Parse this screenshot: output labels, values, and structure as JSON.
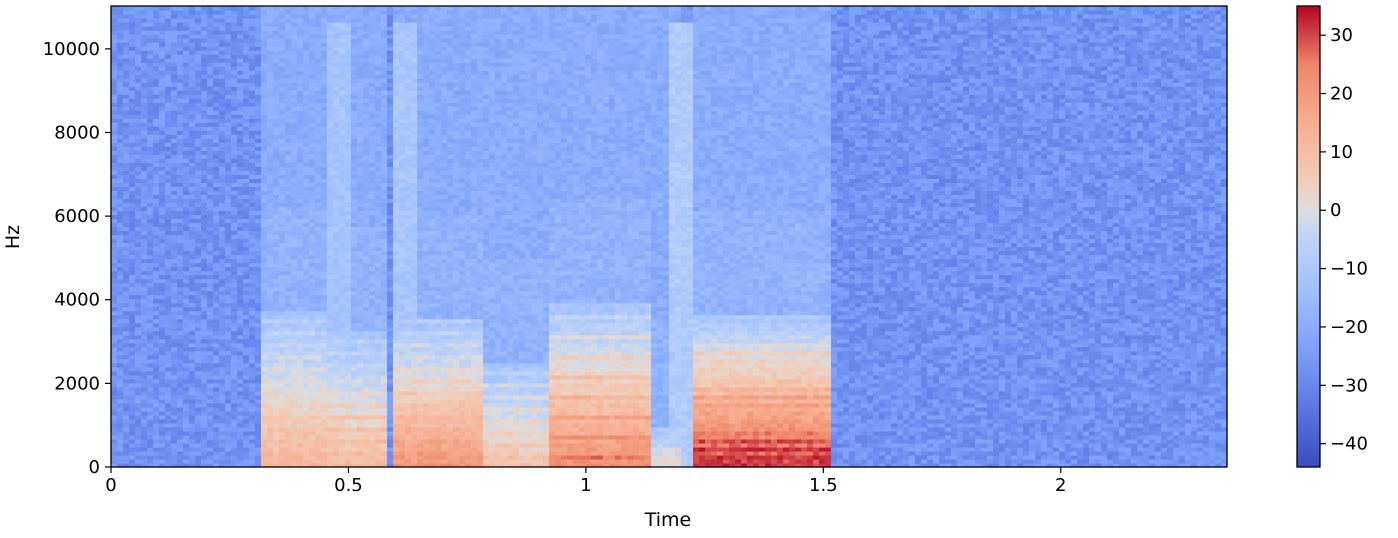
{
  "chart_data": {
    "type": "heatmap",
    "title": "",
    "xlabel": "Time",
    "ylabel": "Hz",
    "xlim": [
      0,
      2.35
    ],
    "ylim": [
      0,
      11025
    ],
    "x_ticks": [
      {
        "value": 0,
        "label": "0"
      },
      {
        "value": 0.5,
        "label": "0.5"
      },
      {
        "value": 1,
        "label": "1"
      },
      {
        "value": 1.5,
        "label": "1.5"
      },
      {
        "value": 2,
        "label": "2"
      }
    ],
    "y_ticks": [
      {
        "value": 0,
        "label": "0"
      },
      {
        "value": 2000,
        "label": "2000"
      },
      {
        "value": 4000,
        "label": "4000"
      },
      {
        "value": 6000,
        "label": "6000"
      },
      {
        "value": 8000,
        "label": "8000"
      },
      {
        "value": 10000,
        "label": "10000"
      }
    ],
    "colorbar": {
      "cmap": "coolwarm",
      "range": [
        -44,
        35
      ],
      "ticks": [
        {
          "value": 30,
          "label": "30"
        },
        {
          "value": 20,
          "label": "20"
        },
        {
          "value": 10,
          "label": "10"
        },
        {
          "value": 0,
          "label": "0"
        },
        {
          "value": -10,
          "label": "−10"
        },
        {
          "value": -20,
          "label": "−20"
        },
        {
          "value": -30,
          "label": "−30"
        },
        {
          "value": -40,
          "label": "−40"
        }
      ]
    },
    "background_level_db": -27,
    "speech_segments": [
      {
        "t_start": 0.32,
        "t_end": 0.46,
        "f_max": 3700,
        "peak_db": 12,
        "harmonic_f0": 290
      },
      {
        "t_start": 0.46,
        "t_end": 0.58,
        "f_max": 3300,
        "peak_db": 10,
        "harmonic_f0": 300
      },
      {
        "t_start": 0.6,
        "t_end": 0.78,
        "f_max": 3500,
        "peak_db": 20,
        "harmonic_f0": 290
      },
      {
        "t_start": 0.78,
        "t_end": 0.92,
        "f_max": 2500,
        "peak_db": 8,
        "harmonic_f0": 280
      },
      {
        "t_start": 0.92,
        "t_end": 1.14,
        "f_max": 3900,
        "peak_db": 22,
        "harmonic_f0": 240
      },
      {
        "t_start": 1.14,
        "t_end": 1.2,
        "f_max": 1000,
        "peak_db": 2,
        "harmonic_f0": 220
      },
      {
        "t_start": 1.22,
        "t_end": 1.52,
        "f_max": 3600,
        "peak_db": 32,
        "harmonic_f0": 210
      }
    ],
    "broadband_bursts": [
      {
        "t_start": 0.46,
        "t_end": 0.5,
        "f_max": 10600,
        "level_db": -12
      },
      {
        "t_start": 0.59,
        "t_end": 0.64,
        "f_max": 10600,
        "level_db": -11
      },
      {
        "t_start": 1.17,
        "t_end": 1.22,
        "f_max": 10600,
        "level_db": -9
      }
    ]
  }
}
